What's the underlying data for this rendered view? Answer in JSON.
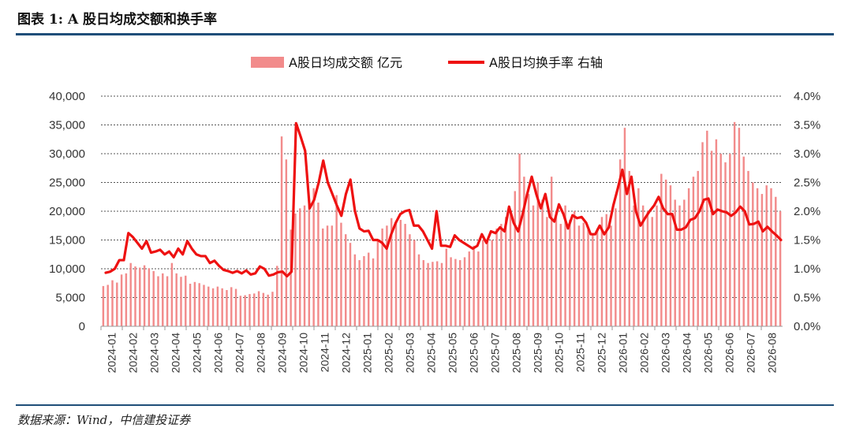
{
  "header": {
    "title": "图表 1: A 股日均成交额和换手率"
  },
  "footer": {
    "source": "数据来源：Wind，中信建投证券"
  },
  "colors": {
    "bar": "#f28b8b",
    "line": "#ee1111",
    "rule": "#1f4e79",
    "grid": "#555555"
  },
  "chart_data": {
    "type": "bar",
    "legend_position": "top",
    "grid": true,
    "x_ticks": [
      "2024-01",
      "2024-02",
      "2024-03",
      "2024-04",
      "2024-05",
      "2024-06",
      "2024-07",
      "2024-08",
      "2024-09",
      "2024-10",
      "2024-11",
      "2024-12",
      "2025-01",
      "2025-02",
      "2025-03",
      "2025-04",
      "2025-05",
      "2025-06",
      "2025-07",
      "2025-08",
      "2025-09",
      "2025-10",
      "2025-11",
      "2025-12",
      "2026-01",
      "2026-02",
      "2026-03",
      "2026-04",
      "2026-05",
      "2026-06",
      "2026-07",
      "2026-08"
    ],
    "y_ticks": [
      "0",
      "5,000",
      "10,000",
      "15,000",
      "20,000",
      "25,000",
      "30,000",
      "35,000",
      "40,000"
    ],
    "y2_ticks": [
      "0.0%",
      "0.5%",
      "1.0%",
      "1.5%",
      "2.0%",
      "2.5%",
      "3.0%",
      "3.5%",
      "4.0%"
    ],
    "ylim": [
      0,
      40000
    ],
    "y2lim": [
      0,
      4.0
    ],
    "series": [
      {
        "name": "A股日均成交额 亿元",
        "kind": "bar",
        "axis": "left",
        "values": [
          7000,
          7200,
          8000,
          7600,
          9000,
          9200,
          11000,
          10400,
          10200,
          10600,
          10100,
          9600,
          8700,
          9200,
          8700,
          11000,
          9200,
          8600,
          8800,
          7400,
          7700,
          7500,
          7200,
          6900,
          6600,
          6900,
          6600,
          6300,
          6800,
          6500,
          5300,
          5400,
          5600,
          5700,
          6100,
          5800,
          5500,
          6000,
          10500,
          33000,
          29000,
          16800,
          19600,
          20500,
          21000,
          22000,
          24000,
          21500,
          17000,
          17500,
          17500,
          22800,
          18000,
          16000,
          14500,
          12500,
          11500,
          12200,
          12800,
          11800,
          14800,
          17000,
          17500,
          18800,
          18000,
          18500,
          17800,
          16000,
          15000,
          12500,
          11500,
          11000,
          11200,
          11300,
          11000,
          13500,
          12000,
          11700,
          11500,
          12000,
          13000,
          14000,
          13000,
          15000,
          14800,
          15000,
          17000,
          17800,
          19000,
          20000,
          23500,
          30000,
          26000,
          23000,
          21000,
          25000,
          22000,
          19000,
          26000,
          20000,
          17800,
          21000,
          18500,
          20000,
          17500,
          18000,
          16800,
          16200,
          17000,
          19000,
          19500,
          17500,
          20500,
          29000,
          34500,
          27000,
          21000,
          24000,
          21000,
          20000,
          19000,
          21000,
          26500,
          25500,
          24500,
          22000,
          21000,
          22000,
          24000,
          26000,
          27000,
          32000,
          34000,
          30500,
          32500,
          30000,
          28500,
          30000,
          35500,
          34500,
          29500,
          27000,
          25000,
          24000,
          23000,
          24500,
          24000,
          22500,
          20000
        ]
      },
      {
        "name": "A股日均换手率 右轴",
        "kind": "line",
        "axis": "right",
        "values": [
          0.93,
          0.95,
          1.0,
          1.15,
          1.15,
          1.62,
          1.55,
          1.45,
          1.35,
          1.48,
          1.28,
          1.3,
          1.33,
          1.25,
          1.3,
          1.2,
          1.35,
          1.25,
          1.48,
          1.35,
          1.25,
          1.22,
          1.22,
          1.1,
          1.14,
          1.05,
          0.98,
          0.96,
          0.93,
          0.96,
          0.92,
          0.97,
          0.9,
          0.92,
          1.04,
          1.0,
          0.88,
          0.9,
          0.94,
          0.95,
          0.87,
          0.95,
          3.53,
          3.3,
          3.05,
          2.05,
          2.2,
          2.5,
          2.88,
          2.5,
          2.3,
          2.1,
          1.92,
          2.3,
          2.55,
          2.0,
          1.7,
          1.65,
          1.66,
          1.5,
          1.5,
          1.45,
          1.35,
          1.6,
          1.8,
          1.95,
          2.0,
          2.02,
          1.75,
          1.75,
          1.65,
          1.5,
          1.35,
          2.0,
          1.4,
          1.4,
          1.38,
          1.58,
          1.5,
          1.45,
          1.4,
          1.35,
          1.4,
          1.6,
          1.45,
          1.65,
          1.62,
          1.72,
          1.65,
          2.08,
          1.8,
          1.65,
          1.95,
          2.3,
          2.6,
          2.3,
          2.05,
          2.3,
          1.9,
          1.82,
          2.12,
          1.95,
          1.7,
          1.93,
          1.88,
          1.9,
          1.8,
          1.6,
          1.6,
          1.75,
          1.6,
          1.72,
          2.1,
          2.4,
          2.72,
          2.3,
          2.6,
          2.0,
          1.75,
          1.88,
          2.0,
          2.1,
          2.25,
          2.05,
          1.95,
          1.95,
          1.68,
          1.68,
          1.72,
          1.85,
          1.88,
          2.0,
          2.2,
          2.22,
          1.95,
          2.03,
          2.0,
          1.98,
          1.92,
          1.98,
          2.08,
          2.0,
          1.77,
          1.78,
          1.82,
          1.65,
          1.73,
          1.65,
          1.58,
          1.5
        ]
      }
    ]
  }
}
